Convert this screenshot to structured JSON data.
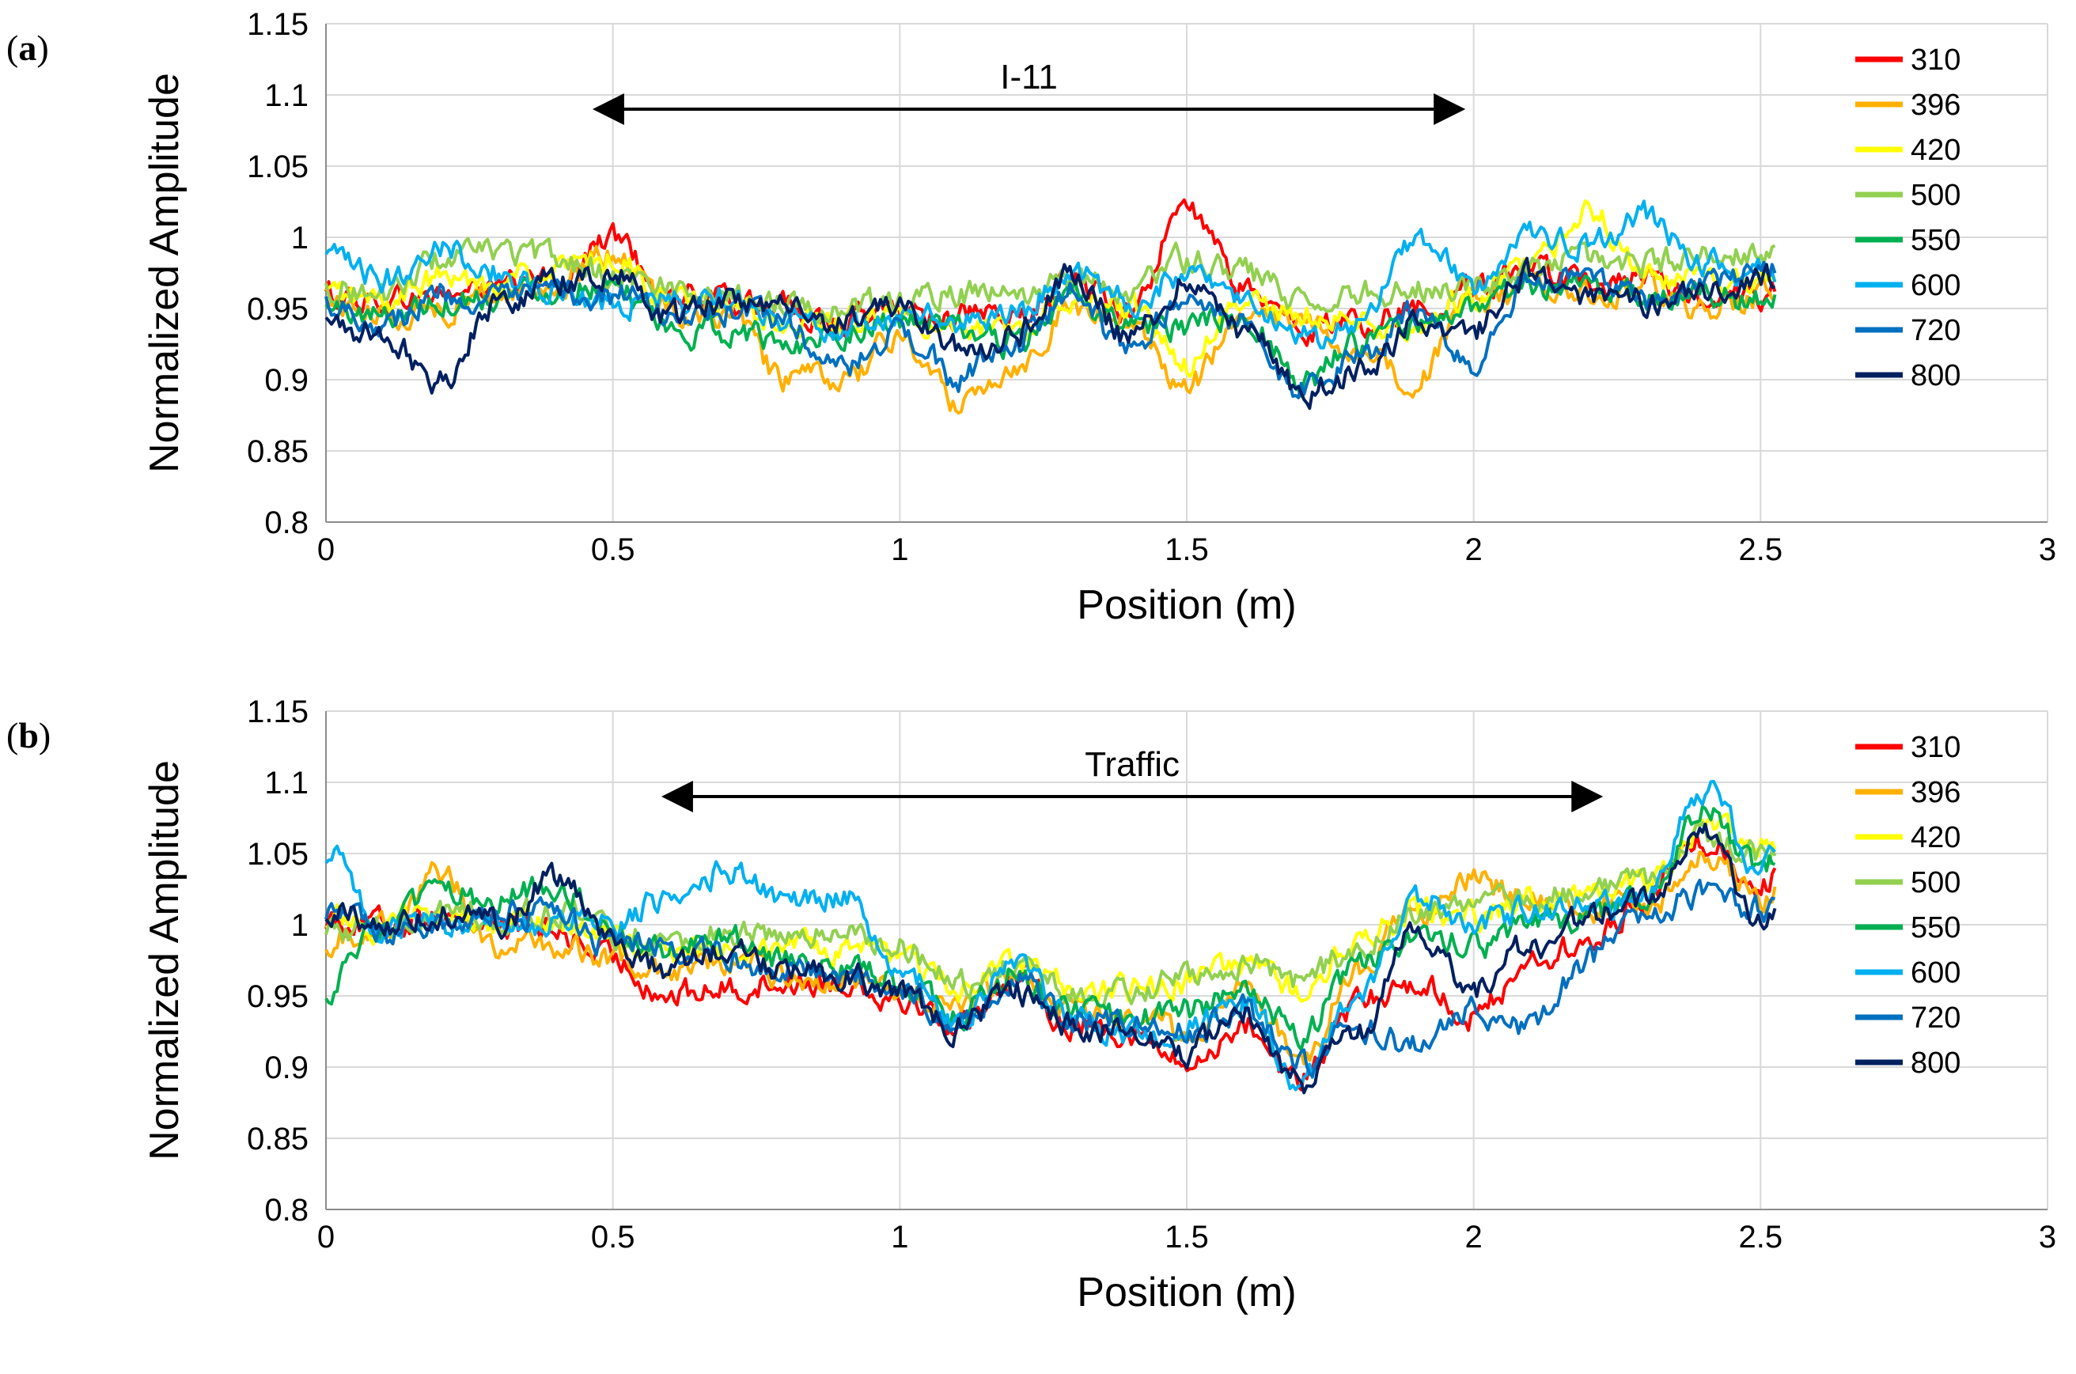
{
  "chart_data": [
    {
      "panel_label": "a",
      "type": "line",
      "title": "",
      "xlabel": "Position (m)",
      "ylabel": "Normalized Amplitude",
      "xlim": [
        0,
        3
      ],
      "ylim": [
        0.8,
        1.15
      ],
      "xticks": [
        "0",
        "0.5",
        "1",
        "1.5",
        "2",
        "2.5",
        "3"
      ],
      "yticks": [
        "0.8",
        "0.85",
        "0.9",
        "0.95",
        "1",
        "1.05",
        "1.1",
        "1.15"
      ],
      "grid": true,
      "legend_position": "right",
      "annotation": {
        "text": "I-11",
        "arrow_from_x": 0.47,
        "arrow_to_x": 1.98,
        "arrow_y": 1.09
      },
      "x": [
        0,
        0.1,
        0.2,
        0.3,
        0.4,
        0.5,
        0.6,
        0.7,
        0.8,
        0.9,
        1.0,
        1.1,
        1.2,
        1.3,
        1.4,
        1.5,
        1.6,
        1.7,
        1.8,
        1.9,
        2.0,
        2.1,
        2.2,
        2.3,
        2.4,
        2.5
      ],
      "series": [
        {
          "name": "310",
          "color": "#ff0000",
          "values": [
            0.96,
            0.955,
            0.96,
            0.965,
            0.97,
            1.0,
            0.96,
            0.955,
            0.95,
            0.94,
            0.95,
            0.945,
            0.94,
            0.97,
            0.95,
            1.02,
            0.965,
            0.935,
            0.94,
            0.95,
            0.965,
            0.975,
            0.965,
            0.97,
            0.96,
            0.96
          ]
        },
        {
          "name": "396",
          "color": "#ffb000",
          "values": [
            0.955,
            0.945,
            0.95,
            0.96,
            0.965,
            0.99,
            0.95,
            0.945,
            0.9,
            0.9,
            0.93,
            0.885,
            0.91,
            0.95,
            0.94,
            0.895,
            0.945,
            0.94,
            0.92,
            0.9,
            0.955,
            0.965,
            0.96,
            0.965,
            0.95,
            0.96
          ]
        },
        {
          "name": "420",
          "color": "#ffff00",
          "values": [
            0.96,
            0.955,
            0.97,
            0.97,
            0.975,
            0.985,
            0.955,
            0.95,
            0.94,
            0.94,
            0.945,
            0.93,
            0.935,
            0.96,
            0.95,
            0.91,
            0.955,
            0.945,
            0.94,
            0.935,
            0.96,
            0.98,
            1.02,
            0.97,
            0.97,
            0.97
          ]
        },
        {
          "name": "500",
          "color": "#92d050",
          "values": [
            0.965,
            0.96,
            0.985,
            0.99,
            0.985,
            0.975,
            0.965,
            0.96,
            0.955,
            0.95,
            0.955,
            0.96,
            0.96,
            0.97,
            0.965,
            0.985,
            0.975,
            0.955,
            0.96,
            0.965,
            0.965,
            0.975,
            0.985,
            0.98,
            0.99,
            0.985
          ]
        },
        {
          "name": "550",
          "color": "#00b050",
          "values": [
            0.95,
            0.945,
            0.955,
            0.96,
            0.965,
            0.97,
            0.93,
            0.935,
            0.925,
            0.935,
            0.94,
            0.935,
            0.925,
            0.955,
            0.94,
            0.935,
            0.945,
            0.9,
            0.925,
            0.935,
            0.95,
            0.965,
            0.965,
            0.96,
            0.96,
            0.955
          ]
        },
        {
          "name": "600",
          "color": "#00b0f0",
          "values": [
            0.985,
            0.97,
            0.995,
            0.975,
            0.96,
            0.955,
            0.955,
            0.96,
            0.945,
            0.935,
            0.945,
            0.94,
            0.945,
            0.975,
            0.955,
            0.975,
            0.955,
            0.93,
            0.935,
            1.0,
            0.965,
            1.0,
            0.995,
            1.015,
            0.98,
            0.975
          ]
        },
        {
          "name": "720",
          "color": "#0070c0",
          "values": [
            0.955,
            0.94,
            0.96,
            0.955,
            0.96,
            0.96,
            0.945,
            0.95,
            0.94,
            0.905,
            0.935,
            0.9,
            0.925,
            0.96,
            0.92,
            0.96,
            0.94,
            0.895,
            0.915,
            0.945,
            0.91,
            0.97,
            0.97,
            0.955,
            0.965,
            0.98
          ]
        },
        {
          "name": "800",
          "color": "#002060",
          "values": [
            0.94,
            0.93,
            0.9,
            0.955,
            0.97,
            0.975,
            0.945,
            0.955,
            0.95,
            0.94,
            0.95,
            0.925,
            0.93,
            0.975,
            0.93,
            0.97,
            0.935,
            0.89,
            0.905,
            0.94,
            0.935,
            0.975,
            0.96,
            0.955,
            0.965,
            0.97
          ]
        }
      ]
    },
    {
      "panel_label": "b",
      "type": "line",
      "title": "",
      "xlabel": "Position (m)",
      "ylabel": "Normalized Amplitude",
      "xlim": [
        0,
        3
      ],
      "ylim": [
        0.8,
        1.15
      ],
      "xticks": [
        "0",
        "0.5",
        "1",
        "1.5",
        "2",
        "2.5",
        "3"
      ],
      "yticks": [
        "0.8",
        "0.85",
        "0.9",
        "0.95",
        "1",
        "1.05",
        "1.1",
        "1.15"
      ],
      "grid": true,
      "legend_position": "right",
      "annotation": {
        "text": "Traffic",
        "arrow_from_x": 0.59,
        "arrow_to_x": 2.22,
        "arrow_y": 1.09
      },
      "x": [
        0,
        0.1,
        0.2,
        0.3,
        0.4,
        0.5,
        0.6,
        0.7,
        0.8,
        0.9,
        1.0,
        1.1,
        1.2,
        1.3,
        1.4,
        1.5,
        1.6,
        1.7,
        1.8,
        1.9,
        2.0,
        2.1,
        2.2,
        2.3,
        2.4,
        2.5
      ],
      "series": [
        {
          "name": "310",
          "color": "#ff0000",
          "values": [
            1.005,
            1.0,
            1.01,
            1.0,
            0.995,
            0.975,
            0.95,
            0.955,
            0.96,
            0.96,
            0.95,
            0.93,
            0.965,
            0.93,
            0.925,
            0.9,
            0.93,
            0.89,
            0.945,
            0.96,
            0.935,
            0.975,
            0.985,
            1.02,
            1.06,
            1.03
          ]
        },
        {
          "name": "396",
          "color": "#ffb000",
          "values": [
            0.99,
            1.0,
            1.035,
            0.985,
            0.985,
            0.975,
            0.97,
            0.975,
            0.965,
            0.96,
            0.955,
            0.94,
            0.96,
            0.94,
            0.935,
            0.925,
            0.955,
            0.905,
            0.97,
            1.01,
            1.03,
            1.02,
            1.01,
            1.01,
            1.05,
            1.02
          ]
        },
        {
          "name": "420",
          "color": "#ffff00",
          "values": [
            1.005,
            1.0,
            1.01,
            1.0,
            1.0,
            0.99,
            0.98,
            0.985,
            0.985,
            0.98,
            0.975,
            0.955,
            0.975,
            0.955,
            0.955,
            0.96,
            0.97,
            0.955,
            0.99,
            1.01,
            1.005,
            1.02,
            1.02,
            1.03,
            1.07,
            1.06
          ]
        },
        {
          "name": "500",
          "color": "#92d050",
          "values": [
            1.0,
            0.995,
            1.01,
            1.005,
            1.01,
            0.995,
            0.99,
            0.995,
            0.99,
            0.995,
            0.985,
            0.96,
            0.97,
            0.95,
            0.95,
            0.965,
            0.975,
            0.96,
            0.985,
            1.01,
            1.01,
            1.02,
            1.02,
            1.03,
            1.065,
            1.05
          ]
        },
        {
          "name": "550",
          "color": "#00b050",
          "values": [
            0.955,
            1.0,
            1.02,
            1.02,
            1.03,
            0.995,
            0.98,
            0.99,
            0.975,
            0.97,
            0.96,
            0.935,
            0.965,
            0.94,
            0.935,
            0.94,
            0.955,
            0.925,
            0.97,
            0.995,
            0.985,
            1.0,
            1.005,
            1.02,
            1.08,
            1.04
          ]
        },
        {
          "name": "600",
          "color": "#00b0f0",
          "values": [
            1.05,
            1.0,
            1.0,
            1.0,
            1.0,
            1.0,
            1.02,
            1.04,
            1.02,
            1.02,
            0.97,
            0.93,
            0.97,
            0.935,
            0.92,
            0.93,
            0.945,
            0.89,
            0.95,
            1.02,
            1.0,
            1.01,
            1.01,
            1.02,
            1.095,
            1.04
          ]
        },
        {
          "name": "720",
          "color": "#0070c0",
          "values": [
            1.01,
            0.995,
            1.0,
            1.01,
            1.005,
            0.985,
            0.985,
            0.975,
            0.97,
            0.965,
            0.955,
            0.935,
            0.96,
            0.935,
            0.93,
            0.925,
            0.94,
            0.9,
            0.93,
            0.915,
            0.94,
            0.93,
            0.975,
            1.01,
            1.02,
            1.01
          ]
        },
        {
          "name": "800",
          "color": "#002060",
          "values": [
            1.01,
            1.0,
            1.01,
            1.0,
            1.035,
            0.985,
            0.965,
            0.985,
            0.97,
            0.965,
            0.95,
            0.93,
            0.955,
            0.93,
            0.925,
            0.91,
            0.94,
            0.89,
            0.925,
            0.995,
            0.955,
            0.985,
            1.005,
            1.015,
            1.065,
            1.0
          ]
        }
      ]
    }
  ]
}
